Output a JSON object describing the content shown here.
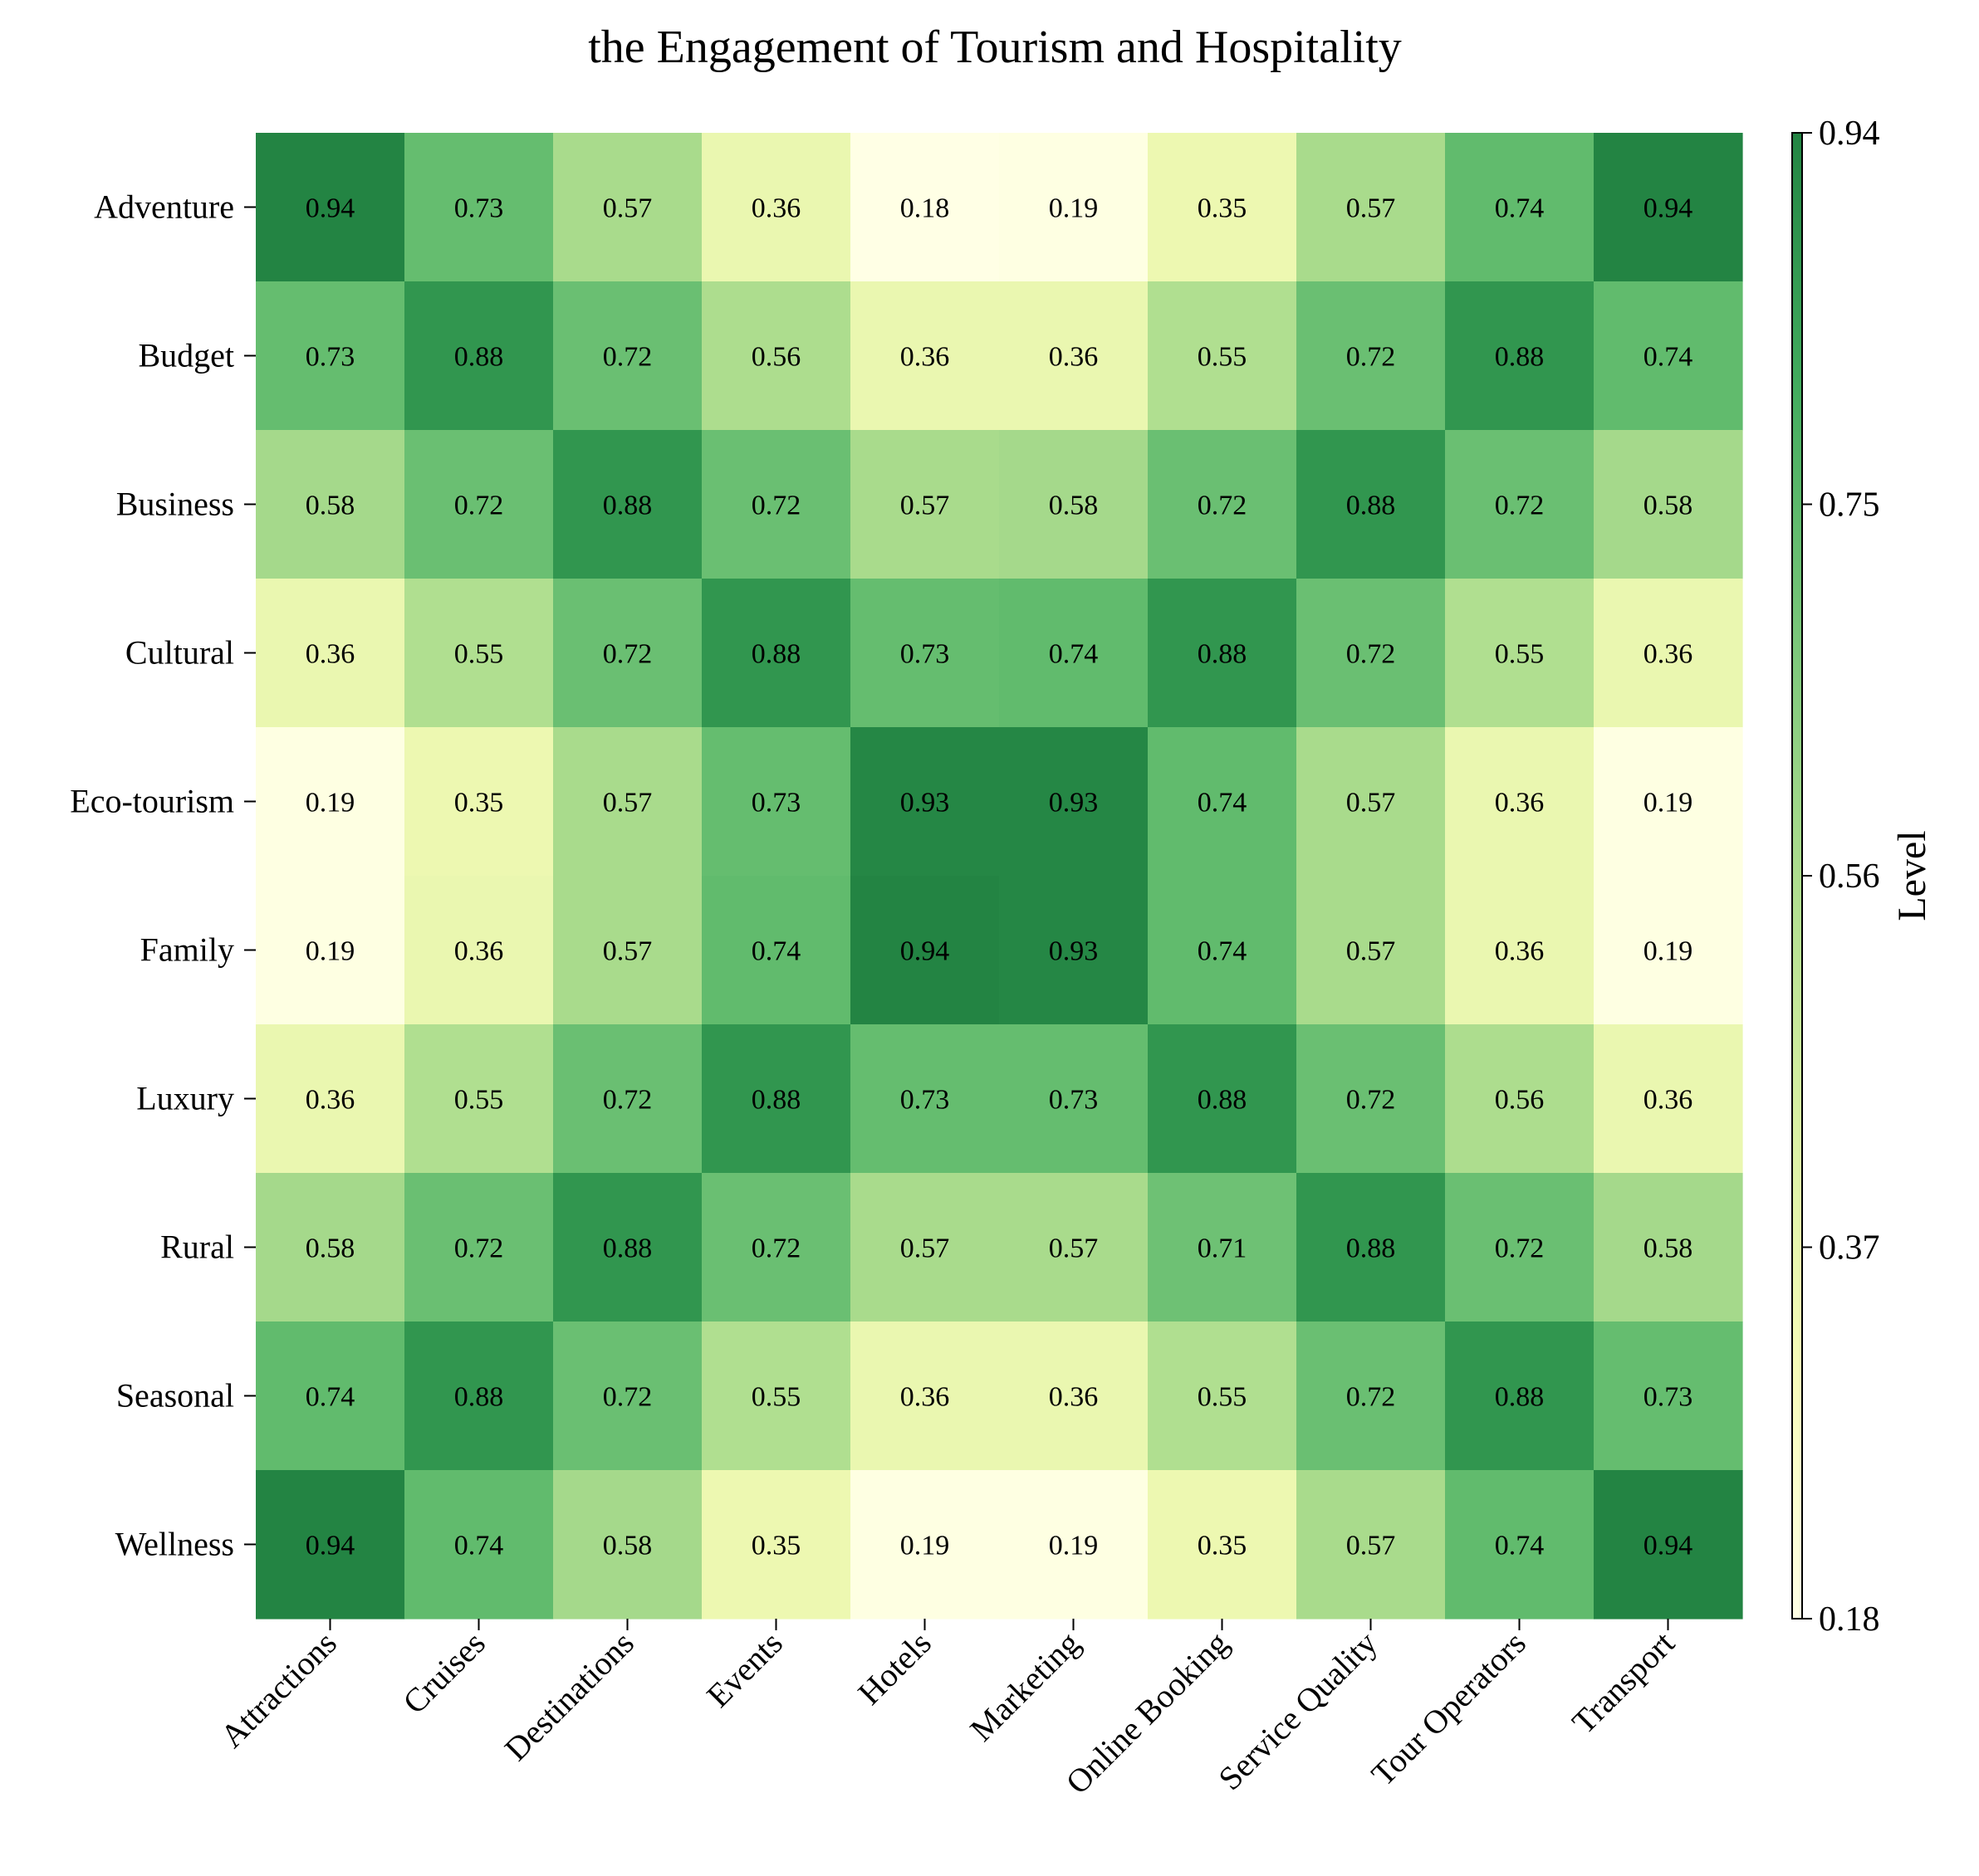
{
  "chart_data": {
    "type": "heatmap",
    "title": "the Engagement of Tourism and Hospitality",
    "xlabel": "",
    "ylabel": "",
    "columns": [
      "Attractions",
      "Cruises",
      "Destinations",
      "Events",
      "Hotels",
      "Marketing",
      "Online Booking",
      "Service Quality",
      "Tour Operators",
      "Transport"
    ],
    "rows": [
      "Adventure",
      "Budget",
      "Business",
      "Cultural",
      "Eco-tourism",
      "Family",
      "Luxury",
      "Rural",
      "Seasonal",
      "Wellness"
    ],
    "values": [
      [
        0.94,
        0.73,
        0.57,
        0.36,
        0.18,
        0.19,
        0.35,
        0.57,
        0.74,
        0.94
      ],
      [
        0.73,
        0.88,
        0.72,
        0.56,
        0.36,
        0.36,
        0.55,
        0.72,
        0.88,
        0.74
      ],
      [
        0.58,
        0.72,
        0.88,
        0.72,
        0.57,
        0.58,
        0.72,
        0.88,
        0.72,
        0.58
      ],
      [
        0.36,
        0.55,
        0.72,
        0.88,
        0.73,
        0.74,
        0.88,
        0.72,
        0.55,
        0.36
      ],
      [
        0.19,
        0.35,
        0.57,
        0.73,
        0.93,
        0.93,
        0.74,
        0.57,
        0.36,
        0.19
      ],
      [
        0.19,
        0.36,
        0.57,
        0.74,
        0.94,
        0.93,
        0.74,
        0.57,
        0.36,
        0.19
      ],
      [
        0.36,
        0.55,
        0.72,
        0.88,
        0.73,
        0.73,
        0.88,
        0.72,
        0.56,
        0.36
      ],
      [
        0.58,
        0.72,
        0.88,
        0.72,
        0.57,
        0.57,
        0.71,
        0.88,
        0.72,
        0.58
      ],
      [
        0.74,
        0.88,
        0.72,
        0.55,
        0.36,
        0.36,
        0.55,
        0.72,
        0.88,
        0.73
      ],
      [
        0.94,
        0.74,
        0.58,
        0.35,
        0.19,
        0.19,
        0.35,
        0.57,
        0.74,
        0.94
      ]
    ],
    "colorbar": {
      "label": "Level",
      "range": [
        0.18,
        0.94
      ],
      "ticks": [
        "0.94",
        "0.75",
        "0.56",
        "0.37",
        "0.18"
      ],
      "colormap": [
        "#ffffe5",
        "#f7fcb9",
        "#d9f0a3",
        "#addd8e",
        "#78c679",
        "#41ab5d",
        "#238443"
      ]
    },
    "grid": false,
    "legend": "colorbar-right"
  }
}
